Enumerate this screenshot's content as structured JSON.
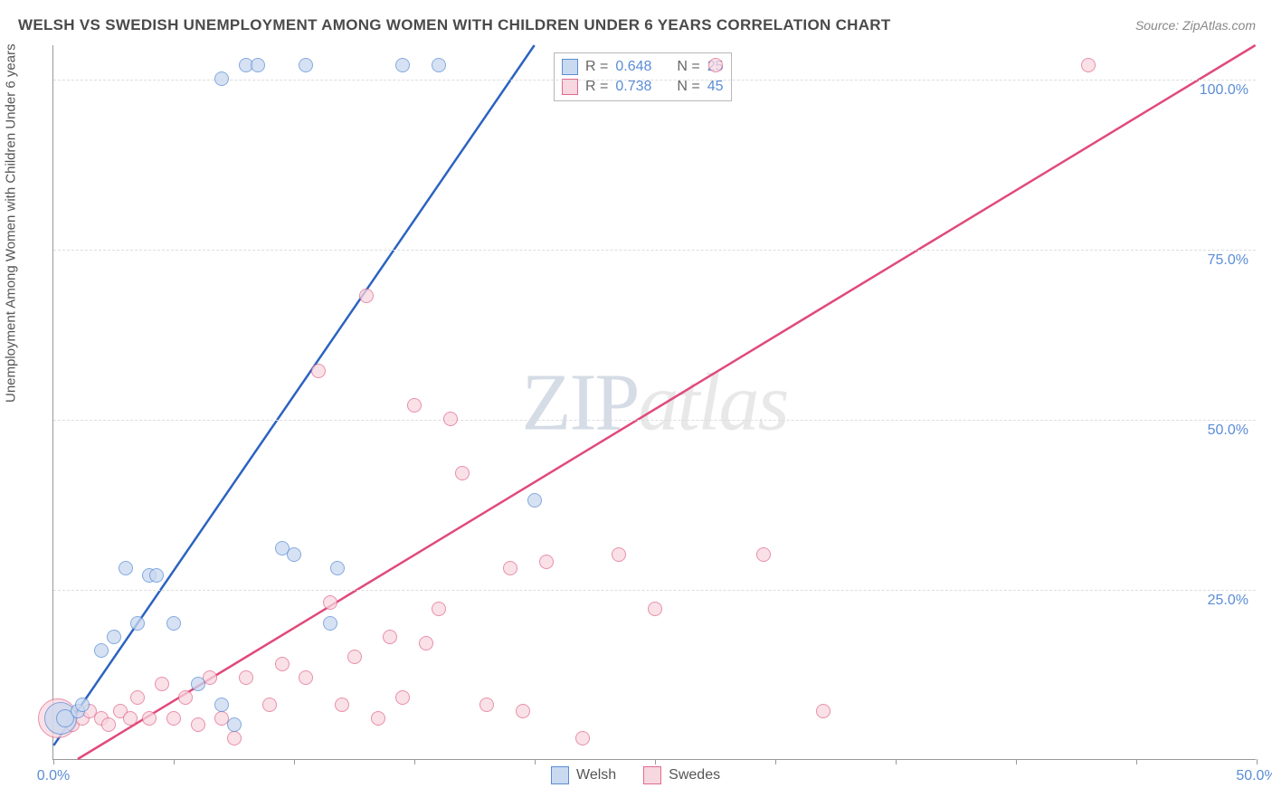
{
  "title": "WELSH VS SWEDISH UNEMPLOYMENT AMONG WOMEN WITH CHILDREN UNDER 6 YEARS CORRELATION CHART",
  "source": "Source: ZipAtlas.com",
  "ylabel": "Unemployment Among Women with Children Under 6 years",
  "watermark": {
    "zip": "ZIP",
    "atlas": "atlas"
  },
  "colors": {
    "welsh_fill": "#c9d9f0",
    "welsh_stroke": "#5b8dd6",
    "welsh_line": "#2b63c0",
    "swede_fill": "#f7d7e0",
    "swede_stroke": "#e26a8f",
    "swede_line": "#e04a7a",
    "grid": "#dddddd",
    "axis": "#999999",
    "tick_text": "#5b8dd6",
    "title_text": "#4a4a4a",
    "label_text": "#555555"
  },
  "axes": {
    "x_min": 0,
    "x_max": 50,
    "x_ticks": [
      0,
      5,
      10,
      15,
      20,
      25,
      30,
      35,
      40,
      45,
      50
    ],
    "x_labels": [
      {
        "v": 0,
        "t": "0.0%"
      },
      {
        "v": 50,
        "t": "50.0%"
      }
    ],
    "y_min": 0,
    "y_max": 105,
    "y_grid": [
      25,
      50,
      75,
      100
    ],
    "y_labels": [
      {
        "v": 25,
        "t": "25.0%"
      },
      {
        "v": 50,
        "t": "50.0%"
      },
      {
        "v": 75,
        "t": "75.0%"
      },
      {
        "v": 100,
        "t": "100.0%"
      }
    ]
  },
  "stats": {
    "welsh": {
      "R": "0.648",
      "N": "25"
    },
    "swede": {
      "R": "0.738",
      "N": "45"
    }
  },
  "legend": {
    "welsh": "Welsh",
    "swede": "Swedes"
  },
  "trend_lines": {
    "welsh": {
      "x1": 0,
      "y1": 2,
      "x2": 20,
      "y2": 105
    },
    "swede": {
      "x1": 1,
      "y1": 0,
      "x2": 50,
      "y2": 105
    }
  },
  "point_radius": 8,
  "series": {
    "welsh": [
      {
        "x": 0.3,
        "y": 6,
        "r": 18
      },
      {
        "x": 0.5,
        "y": 6,
        "r": 10
      },
      {
        "x": 1,
        "y": 7
      },
      {
        "x": 1.2,
        "y": 8
      },
      {
        "x": 2,
        "y": 16
      },
      {
        "x": 2.5,
        "y": 18
      },
      {
        "x": 3,
        "y": 28
      },
      {
        "x": 3.5,
        "y": 20
      },
      {
        "x": 4,
        "y": 27
      },
      {
        "x": 4.3,
        "y": 27
      },
      {
        "x": 5,
        "y": 20
      },
      {
        "x": 6,
        "y": 11
      },
      {
        "x": 7,
        "y": 8
      },
      {
        "x": 7.5,
        "y": 5
      },
      {
        "x": 9.5,
        "y": 31
      },
      {
        "x": 10,
        "y": 30
      },
      {
        "x": 11.5,
        "y": 20
      },
      {
        "x": 11.8,
        "y": 28
      },
      {
        "x": 8,
        "y": 102
      },
      {
        "x": 8.5,
        "y": 102
      },
      {
        "x": 10.5,
        "y": 102
      },
      {
        "x": 14.5,
        "y": 102
      },
      {
        "x": 16,
        "y": 102
      },
      {
        "x": 20,
        "y": 38
      },
      {
        "x": 7,
        "y": 100
      }
    ],
    "swede": [
      {
        "x": 0.2,
        "y": 6,
        "r": 22
      },
      {
        "x": 0.8,
        "y": 5
      },
      {
        "x": 1.2,
        "y": 6
      },
      {
        "x": 1.5,
        "y": 7
      },
      {
        "x": 2,
        "y": 6
      },
      {
        "x": 2.3,
        "y": 5
      },
      {
        "x": 2.8,
        "y": 7
      },
      {
        "x": 3.2,
        "y": 6
      },
      {
        "x": 3.5,
        "y": 9
      },
      {
        "x": 4,
        "y": 6
      },
      {
        "x": 4.5,
        "y": 11
      },
      {
        "x": 5,
        "y": 6
      },
      {
        "x": 5.5,
        "y": 9
      },
      {
        "x": 6,
        "y": 5
      },
      {
        "x": 6.5,
        "y": 12
      },
      {
        "x": 7,
        "y": 6
      },
      {
        "x": 7.5,
        "y": 3
      },
      {
        "x": 8,
        "y": 12
      },
      {
        "x": 9,
        "y": 8
      },
      {
        "x": 9.5,
        "y": 14
      },
      {
        "x": 10.5,
        "y": 12
      },
      {
        "x": 11,
        "y": 57
      },
      {
        "x": 11.5,
        "y": 23
      },
      {
        "x": 12,
        "y": 8
      },
      {
        "x": 12.5,
        "y": 15
      },
      {
        "x": 13,
        "y": 68
      },
      {
        "x": 13.5,
        "y": 6
      },
      {
        "x": 14,
        "y": 18
      },
      {
        "x": 14.5,
        "y": 9
      },
      {
        "x": 15,
        "y": 52
      },
      {
        "x": 15.5,
        "y": 17
      },
      {
        "x": 16,
        "y": 22
      },
      {
        "x": 16.5,
        "y": 50
      },
      {
        "x": 17,
        "y": 42
      },
      {
        "x": 18,
        "y": 8
      },
      {
        "x": 19,
        "y": 28
      },
      {
        "x": 19.5,
        "y": 7
      },
      {
        "x": 20.5,
        "y": 29
      },
      {
        "x": 22,
        "y": 3
      },
      {
        "x": 23.5,
        "y": 30
      },
      {
        "x": 25,
        "y": 22
      },
      {
        "x": 27.5,
        "y": 102
      },
      {
        "x": 29.5,
        "y": 30
      },
      {
        "x": 32,
        "y": 7
      },
      {
        "x": 43,
        "y": 102
      }
    ]
  }
}
